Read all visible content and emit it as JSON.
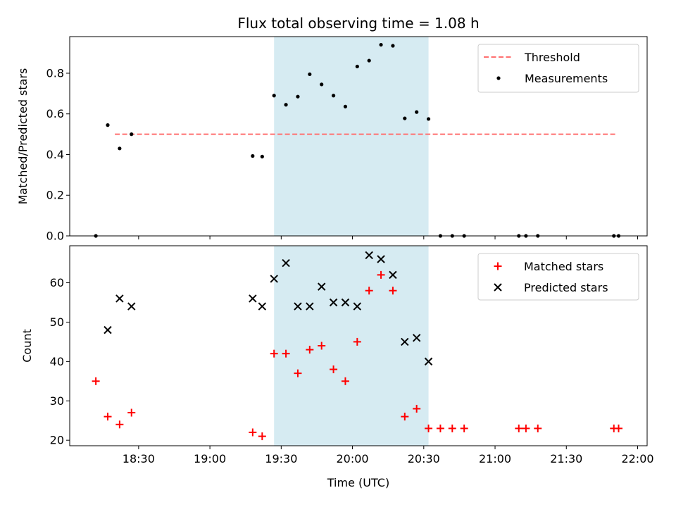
{
  "chart_data": [
    {
      "type": "scatter",
      "title": "Flux total observing time = 1.08 h",
      "ylabel": "Matched/Predicted stars",
      "ylim": [
        0,
        0.98
      ],
      "yticks": [
        "0.0",
        "0.2",
        "0.4",
        "0.6",
        "0.8"
      ],
      "ytick_values": [
        0,
        0.2,
        0.4,
        0.6,
        0.8
      ],
      "grid": false,
      "legend_position": "top-right",
      "shaded_interval": [
        "19:27",
        "20:32"
      ],
      "shade_color": "#add8e6",
      "threshold": {
        "name": "Threshold",
        "value": 0.5,
        "x_range": [
          "18:20",
          "21:51"
        ],
        "color": "#ff7070",
        "style": "dashed"
      },
      "series": [
        {
          "name": "Measurements",
          "marker": "dot",
          "color": "#000000",
          "x": [
            "18:12",
            "18:17",
            "18:22",
            "18:27",
            "19:18",
            "19:22",
            "19:27",
            "19:32",
            "19:37",
            "19:42",
            "19:47",
            "19:52",
            "19:57",
            "20:02",
            "20:07",
            "20:12",
            "20:17",
            "20:22",
            "20:27",
            "20:32",
            "20:37",
            "20:42",
            "20:47",
            "21:10",
            "21:13",
            "21:18",
            "21:50",
            "21:52"
          ],
          "y": [
            0.0,
            0.545,
            0.43,
            0.5,
            0.393,
            0.39,
            0.69,
            0.645,
            0.685,
            0.795,
            0.745,
            0.69,
            0.636,
            0.833,
            0.862,
            0.94,
            0.935,
            0.578,
            0.609,
            0.575,
            0.0,
            0.0,
            0.0,
            0.0,
            0.0,
            0.0,
            0.0,
            0.0
          ]
        }
      ]
    },
    {
      "type": "scatter",
      "title": "",
      "xlabel": "Time (UTC)",
      "ylabel": "Count",
      "xlim": [
        "18:01",
        "22:04"
      ],
      "ylim": [
        18.6,
        69.4
      ],
      "xticks": [
        "18:30",
        "19:00",
        "19:30",
        "20:00",
        "20:30",
        "21:00",
        "21:30",
        "22:00"
      ],
      "yticks": [
        "20",
        "30",
        "40",
        "50",
        "60"
      ],
      "ytick_values": [
        20,
        30,
        40,
        50,
        60
      ],
      "grid": false,
      "legend_position": "top-right",
      "series": [
        {
          "name": "Matched stars",
          "marker": "plus",
          "color": "#ff0000",
          "x": [
            "18:12",
            "18:17",
            "18:22",
            "18:27",
            "19:18",
            "19:22",
            "19:27",
            "19:32",
            "19:37",
            "19:42",
            "19:47",
            "19:52",
            "19:57",
            "20:02",
            "20:07",
            "20:12",
            "20:17",
            "20:22",
            "20:27",
            "20:32",
            "20:37",
            "20:42",
            "20:47",
            "21:10",
            "21:13",
            "21:18",
            "21:50",
            "21:52"
          ],
          "y": [
            35,
            26,
            24,
            27,
            22,
            21,
            42,
            42,
            37,
            43,
            44,
            38,
            35,
            45,
            58,
            62,
            58,
            26,
            28,
            23,
            23,
            23,
            23,
            23,
            23,
            23,
            23,
            23
          ]
        },
        {
          "name": "Predicted stars",
          "marker": "x",
          "color": "#000000",
          "x": [
            "18:17",
            "18:22",
            "18:27",
            "19:18",
            "19:22",
            "19:27",
            "19:32",
            "19:37",
            "19:42",
            "19:47",
            "19:52",
            "19:57",
            "20:02",
            "20:07",
            "20:12",
            "20:17",
            "20:22",
            "20:27",
            "20:32"
          ],
          "y": [
            48,
            56,
            54,
            56,
            54,
            61,
            65,
            54,
            54,
            59,
            55,
            55,
            54,
            67,
            66,
            62,
            45,
            46,
            40
          ]
        }
      ]
    }
  ]
}
